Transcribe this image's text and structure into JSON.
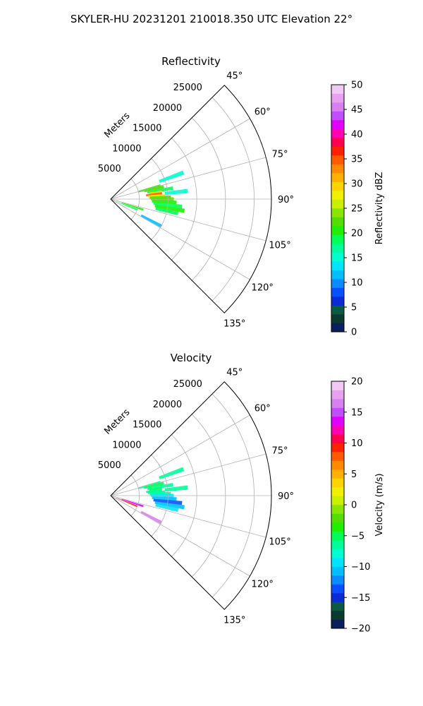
{
  "suptitle": "SKYLER-HU  20231201  210018.350 UTC Elevation 22°",
  "chart_data": [
    {
      "type": "polar-sector-heatmap",
      "title": "Reflectivity",
      "radial_label": "Meters",
      "r_max": 28000,
      "theta_range_deg": [
        45,
        135
      ],
      "theta_ticks": [
        45,
        60,
        75,
        90,
        105,
        120,
        135
      ],
      "theta_tick_labels": [
        "45°",
        "60°",
        "75°",
        "90°",
        "105°",
        "120°",
        "135°"
      ],
      "r_ticks": [
        5000,
        10000,
        15000,
        20000,
        25000
      ],
      "r_tick_labels": [
        "5000",
        "10000",
        "15000",
        "20000",
        "25000"
      ],
      "grid": true,
      "colorbar": {
        "label": "Reflectivity dBZ",
        "min": 0,
        "max": 50,
        "ticks": [
          0,
          5,
          10,
          15,
          20,
          25,
          30,
          35,
          40,
          45,
          50
        ],
        "tick_labels": [
          "0",
          "5",
          "10",
          "15",
          "20",
          "25",
          "30",
          "35",
          "40",
          "45",
          "50"
        ],
        "colors": [
          "#0a1f5c",
          "#0b3a2f",
          "#0d5a44",
          "#0b2bd6",
          "#0850ff",
          "#0a8cff",
          "#00bfff",
          "#00e5ff",
          "#00ffd0",
          "#00ff9a",
          "#00ff55",
          "#22ee00",
          "#55dd00",
          "#88e600",
          "#c8f000",
          "#f0f000",
          "#ffd400",
          "#ffb000",
          "#ff8a00",
          "#ff5a00",
          "#ff2000",
          "#ff0050",
          "#ff00b0",
          "#e000ff",
          "#c050ff",
          "#d880f0",
          "#e8a0f0",
          "#f4c8f6"
        ]
      },
      "echoes": [
        {
          "theta": 75,
          "r0": 5000,
          "r1": 9000,
          "value": 20
        },
        {
          "theta": 77,
          "r0": 6000,
          "r1": 9500,
          "value": 22
        },
        {
          "theta": 80,
          "r0": 6500,
          "r1": 11000,
          "value": 19
        },
        {
          "theta": 82,
          "r0": 6800,
          "r1": 9000,
          "value": 30
        },
        {
          "theta": 84,
          "r0": 6200,
          "r1": 9000,
          "value": 34
        },
        {
          "theta": 86,
          "r0": 6500,
          "r1": 9500,
          "value": 27
        },
        {
          "theta": 88,
          "r0": 6800,
          "r1": 10500,
          "value": 22
        },
        {
          "theta": 90,
          "r0": 7000,
          "r1": 11000,
          "value": 23
        },
        {
          "theta": 93,
          "r0": 7200,
          "r1": 11500,
          "value": 21
        },
        {
          "theta": 96,
          "r0": 7500,
          "r1": 12500,
          "value": 19
        },
        {
          "theta": 99,
          "r0": 7800,
          "r1": 13000,
          "value": 20
        },
        {
          "theta": 102,
          "r0": 8000,
          "r1": 12000,
          "value": 18
        },
        {
          "theta": 108,
          "r0": 2000,
          "r1": 6000,
          "value": 20
        },
        {
          "theta": 112,
          "r0": 1000,
          "r1": 5000,
          "value": 18
        },
        {
          "theta": 118,
          "r0": 6000,
          "r1": 10000,
          "value": 12
        },
        {
          "theta": 84,
          "r0": 9500,
          "r1": 13500,
          "value": 16
        },
        {
          "theta": 70,
          "r0": 9000,
          "r1": 13500,
          "value": 15
        }
      ]
    },
    {
      "type": "polar-sector-heatmap",
      "title": "Velocity",
      "radial_label": "Meters",
      "r_max": 28000,
      "theta_range_deg": [
        45,
        135
      ],
      "theta_ticks": [
        45,
        60,
        75,
        90,
        105,
        120,
        135
      ],
      "theta_tick_labels": [
        "45°",
        "60°",
        "75°",
        "90°",
        "105°",
        "120°",
        "135°"
      ],
      "r_ticks": [
        5000,
        10000,
        15000,
        20000,
        25000
      ],
      "r_tick_labels": [
        "5000",
        "10000",
        "15000",
        "20000",
        "25000"
      ],
      "grid": true,
      "colorbar": {
        "label": "Velocity (m/s)",
        "min": -20,
        "max": 20,
        "ticks": [
          -20,
          -15,
          -10,
          -5,
          0,
          5,
          10,
          15,
          20
        ],
        "tick_labels": [
          "−20",
          "−15",
          "−10",
          "−5",
          "0",
          "5",
          "10",
          "15",
          "20"
        ],
        "colors": [
          "#0a1f5c",
          "#0b3a2f",
          "#0d5a44",
          "#0b2bd6",
          "#0850ff",
          "#0a8cff",
          "#00bfff",
          "#00e5ff",
          "#00ffd0",
          "#00ff9a",
          "#00ff55",
          "#22ee00",
          "#55dd00",
          "#88e600",
          "#c8f000",
          "#f0f000",
          "#ffd400",
          "#ffb000",
          "#ff8a00",
          "#ff5a00",
          "#ff2000",
          "#ff0050",
          "#ff00b0",
          "#e000ff",
          "#c050ff",
          "#d880f0",
          "#e8a0f0",
          "#f4c8f6"
        ]
      },
      "echoes": [
        {
          "theta": 75,
          "r0": 5000,
          "r1": 9000,
          "value": -6
        },
        {
          "theta": 77,
          "r0": 6000,
          "r1": 9500,
          "value": -5
        },
        {
          "theta": 80,
          "r0": 6500,
          "r1": 11000,
          "value": -6
        },
        {
          "theta": 82,
          "r0": 6800,
          "r1": 9000,
          "value": -5
        },
        {
          "theta": 84,
          "r0": 6200,
          "r1": 9000,
          "value": -6
        },
        {
          "theta": 86,
          "r0": 6500,
          "r1": 9500,
          "value": -7
        },
        {
          "theta": 88,
          "r0": 6800,
          "r1": 10500,
          "value": -6
        },
        {
          "theta": 90,
          "r0": 7000,
          "r1": 11000,
          "value": -9
        },
        {
          "theta": 93,
          "r0": 7200,
          "r1": 11500,
          "value": -11
        },
        {
          "theta": 96,
          "r0": 7500,
          "r1": 12500,
          "value": -13
        },
        {
          "theta": 99,
          "r0": 7800,
          "r1": 13000,
          "value": -11
        },
        {
          "theta": 102,
          "r0": 8000,
          "r1": 12000,
          "value": -10
        },
        {
          "theta": 108,
          "r0": 2000,
          "r1": 6000,
          "value": 14
        },
        {
          "theta": 112,
          "r0": 1000,
          "r1": 5000,
          "value": 9
        },
        {
          "theta": 118,
          "r0": 6000,
          "r1": 10000,
          "value": 16
        },
        {
          "theta": 84,
          "r0": 9500,
          "r1": 13500,
          "value": -6
        },
        {
          "theta": 70,
          "r0": 9000,
          "r1": 13500,
          "value": -7
        }
      ]
    }
  ]
}
